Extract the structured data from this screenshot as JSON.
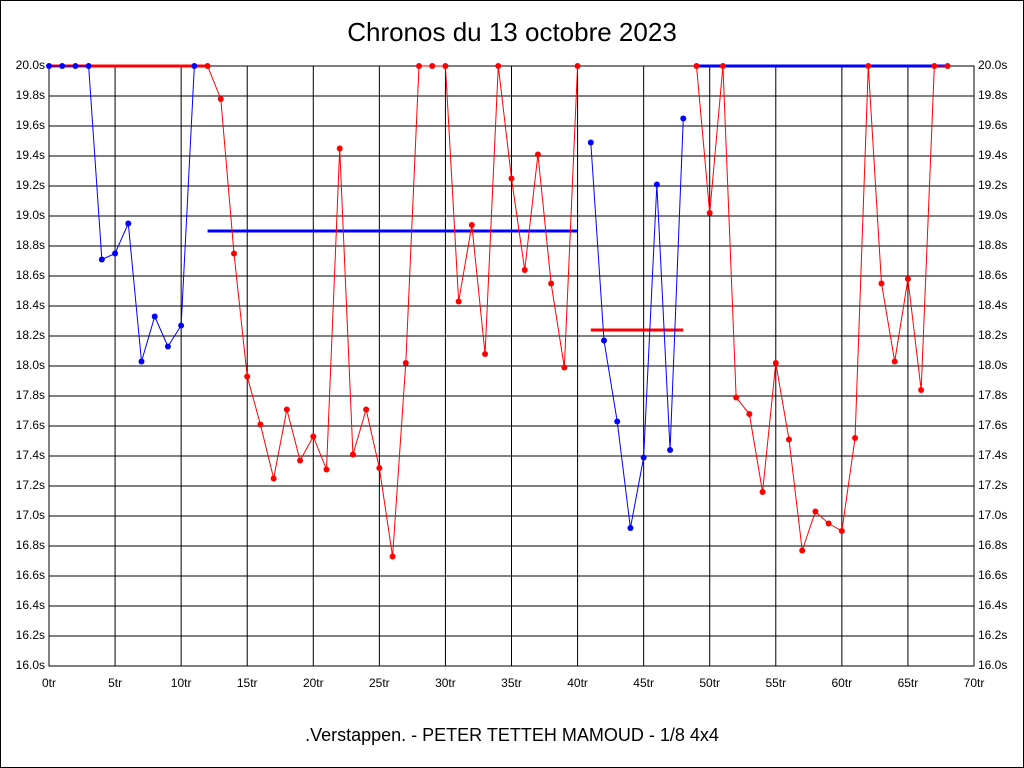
{
  "chart_data": {
    "type": "line",
    "title": "Chronos du 13 octobre 2023",
    "subtitle": ".Verstappen. - PETER TETTEH MAMOUD - 1/8 4x4",
    "xlim": [
      0,
      70
    ],
    "xticks": [
      {
        "value": 0,
        "label": "0tr"
      },
      {
        "value": 5,
        "label": "5tr"
      },
      {
        "value": 10,
        "label": "10tr"
      },
      {
        "value": 15,
        "label": "15tr"
      },
      {
        "value": 20,
        "label": "20tr"
      },
      {
        "value": 25,
        "label": "25tr"
      },
      {
        "value": 30,
        "label": "30tr"
      },
      {
        "value": 35,
        "label": "35tr"
      },
      {
        "value": 40,
        "label": "40tr"
      },
      {
        "value": 45,
        "label": "45tr"
      },
      {
        "value": 50,
        "label": "50tr"
      },
      {
        "value": 55,
        "label": "55tr"
      },
      {
        "value": 60,
        "label": "60tr"
      },
      {
        "value": 65,
        "label": "65tr"
      },
      {
        "value": 70,
        "label": "70tr"
      }
    ],
    "ylim": [
      16,
      20
    ],
    "yticks": [
      {
        "value": 16,
        "label": "16.0s"
      },
      {
        "value": 16.2,
        "label": "16.2s"
      },
      {
        "value": 16.4,
        "label": "16.4s"
      },
      {
        "value": 16.6,
        "label": "16.6s"
      },
      {
        "value": 16.8,
        "label": "16.8s"
      },
      {
        "value": 17,
        "label": "17.0s"
      },
      {
        "value": 17.2,
        "label": "17.2s"
      },
      {
        "value": 17.4,
        "label": "17.4s"
      },
      {
        "value": 17.6,
        "label": "17.6s"
      },
      {
        "value": 17.8,
        "label": "17.8s"
      },
      {
        "value": 18,
        "label": "18.0s"
      },
      {
        "value": 18.2,
        "label": "18.2s"
      },
      {
        "value": 18.4,
        "label": "18.4s"
      },
      {
        "value": 18.6,
        "label": "18.6s"
      },
      {
        "value": 18.8,
        "label": "18.8s"
      },
      {
        "value": 19,
        "label": "19.0s"
      },
      {
        "value": 19.2,
        "label": "19.2s"
      },
      {
        "value": 19.4,
        "label": "19.4s"
      },
      {
        "value": 19.6,
        "label": "19.6s"
      },
      {
        "value": 19.8,
        "label": "19.8s"
      },
      {
        "value": 20,
        "label": "20.0s"
      }
    ],
    "grid": true,
    "series": [
      {
        "color": "#0000ff",
        "x": [
          0,
          1,
          2,
          3,
          4,
          5,
          6,
          7,
          8,
          9,
          10,
          11
        ],
        "values": [
          20,
          20,
          20,
          20,
          18.71,
          18.75,
          18.95,
          18.03,
          18.33,
          18.13,
          18.27,
          20
        ],
        "avg": 20,
        "avg_x": [
          0,
          12
        ],
        "avg_color": "#ff0000"
      },
      {
        "color": "#ff0000",
        "x": [
          12,
          13,
          14,
          15,
          16,
          17,
          18,
          19,
          20,
          21,
          22,
          23,
          24,
          25,
          26,
          27,
          28,
          29,
          30,
          31,
          32,
          33,
          34,
          35,
          36,
          37,
          38,
          39,
          40
        ],
        "values": [
          20,
          19.78,
          18.75,
          17.93,
          17.61,
          17.25,
          17.71,
          17.37,
          17.53,
          17.31,
          19.45,
          17.41,
          17.71,
          17.32,
          16.73,
          18.02,
          20,
          20,
          20,
          18.43,
          18.94,
          18.08,
          20,
          19.25,
          18.64,
          19.41,
          18.55,
          17.99,
          20
        ],
        "avg": 18.9,
        "avg_x": [
          12,
          40
        ],
        "avg_color": "#0000ff"
      },
      {
        "color": "#0000ff",
        "x": [
          41,
          42,
          43,
          44,
          45,
          46,
          47,
          48
        ],
        "values": [
          19.49,
          18.17,
          17.63,
          16.92,
          17.39,
          19.21,
          17.44,
          19.65
        ],
        "avg": 18.24,
        "avg_x": [
          41,
          48
        ],
        "avg_color": "#ff0000"
      },
      {
        "color": "#ff0000",
        "x": [
          49,
          50,
          51,
          52,
          53,
          54,
          55,
          56,
          57,
          58,
          59,
          60,
          61,
          62,
          63,
          64,
          65,
          66,
          67,
          68
        ],
        "values": [
          20,
          19.02,
          20,
          17.79,
          17.68,
          17.16,
          18.02,
          17.51,
          16.77,
          17.03,
          16.95,
          16.9,
          17.52,
          20,
          18.55,
          18.03,
          18.58,
          17.84,
          20,
          20
        ],
        "avg": 20,
        "avg_x": [
          49,
          68
        ],
        "avg_color": "#0000ff"
      }
    ]
  }
}
